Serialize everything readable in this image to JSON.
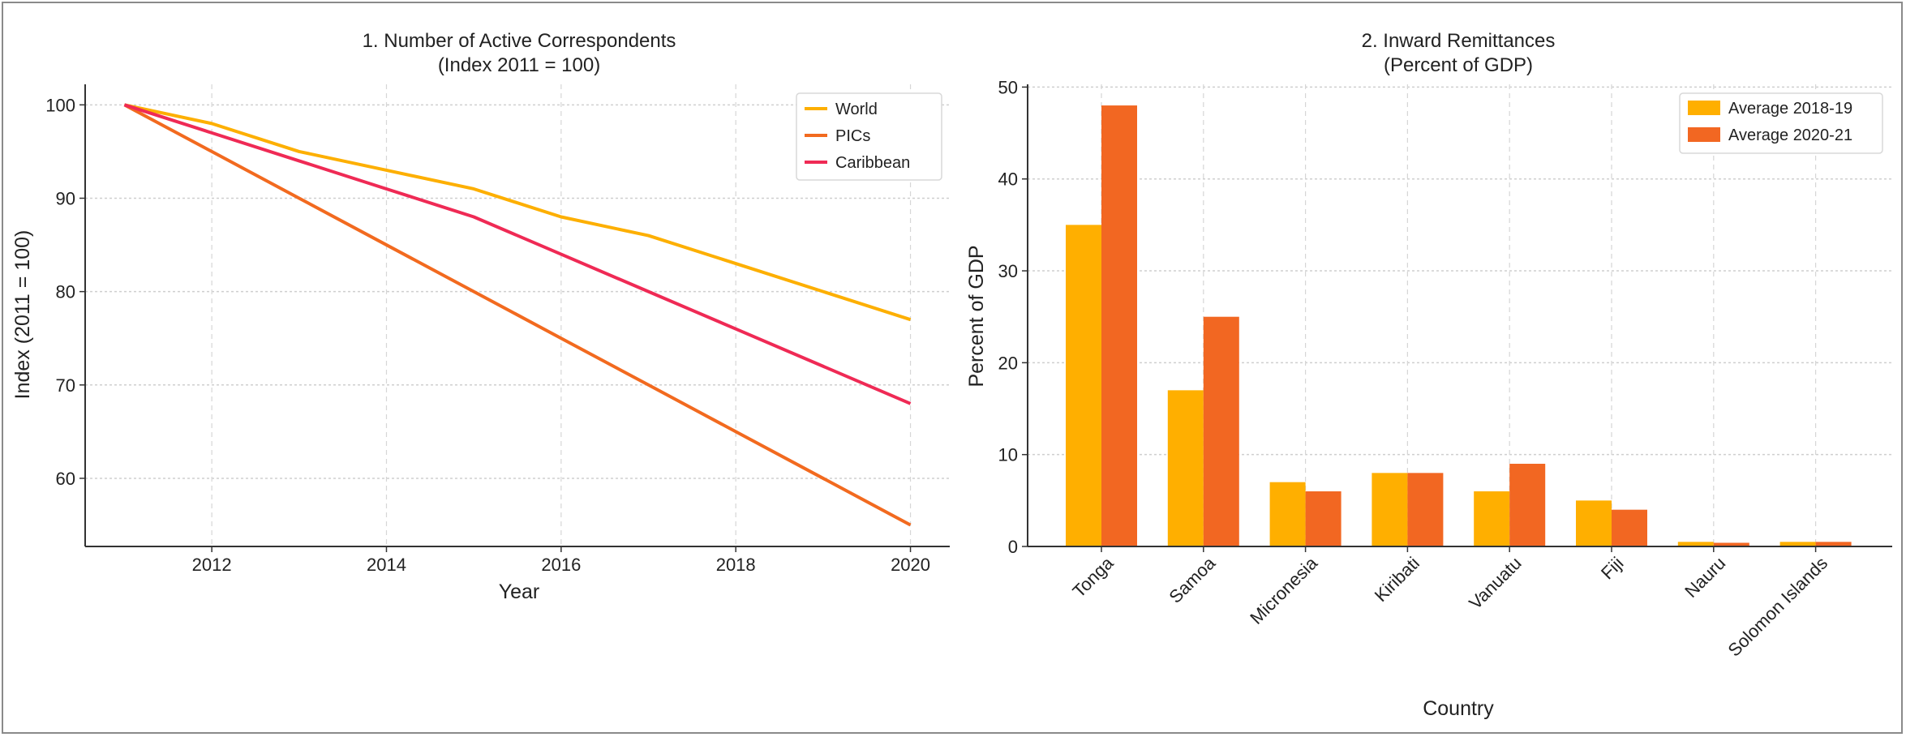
{
  "chart_data": [
    {
      "type": "line",
      "title": "1. Number of Active Correspondents",
      "subtitle": "(Index 2011 = 100)",
      "xlabel": "Year",
      "ylabel": "Index (2011 = 100)",
      "x": [
        2011,
        2012,
        2013,
        2014,
        2015,
        2016,
        2017,
        2018,
        2019,
        2020
      ],
      "xticks": [
        2012,
        2014,
        2016,
        2018,
        2020
      ],
      "yticks": [
        60,
        70,
        80,
        90,
        100
      ],
      "xlim": [
        2010.55,
        2020.45
      ],
      "ylim": [
        52.7,
        102.2
      ],
      "grid": true,
      "legend_position": "top-right",
      "series": [
        {
          "name": "World",
          "color": "#FDAF00",
          "values": [
            100,
            98,
            95,
            93,
            91,
            88,
            86,
            83,
            80,
            77
          ]
        },
        {
          "name": "PICs",
          "color": "#F26A1F",
          "values": [
            100,
            95,
            90,
            85,
            80,
            75,
            70,
            65,
            60,
            55
          ]
        },
        {
          "name": "Caribbean",
          "color": "#EF2A55",
          "values": [
            100,
            97,
            94,
            91,
            88,
            84,
            80,
            76,
            72,
            68
          ]
        }
      ]
    },
    {
      "type": "bar",
      "title": "2. Inward Remittances",
      "subtitle": "(Percent of GDP)",
      "xlabel": "Country",
      "ylabel": "Percent of GDP",
      "categories": [
        "Tonga",
        "Samoa",
        "Micronesia",
        "Kiribati",
        "Vanuatu",
        "Fiji",
        "Nauru",
        "Solomon Islands"
      ],
      "yticks": [
        0,
        10,
        20,
        30,
        40,
        50
      ],
      "ylim": [
        0,
        50.3
      ],
      "grid": true,
      "legend_position": "top-right",
      "series": [
        {
          "name": "Average 2018-19",
          "color": "#FFAF00",
          "values": [
            35,
            17,
            7,
            8,
            6,
            5,
            0.5,
            0.5
          ]
        },
        {
          "name": "Average 2020-21",
          "color": "#F26722",
          "values": [
            48,
            25,
            6,
            8,
            9,
            4,
            0.4,
            0.5
          ]
        }
      ]
    }
  ]
}
